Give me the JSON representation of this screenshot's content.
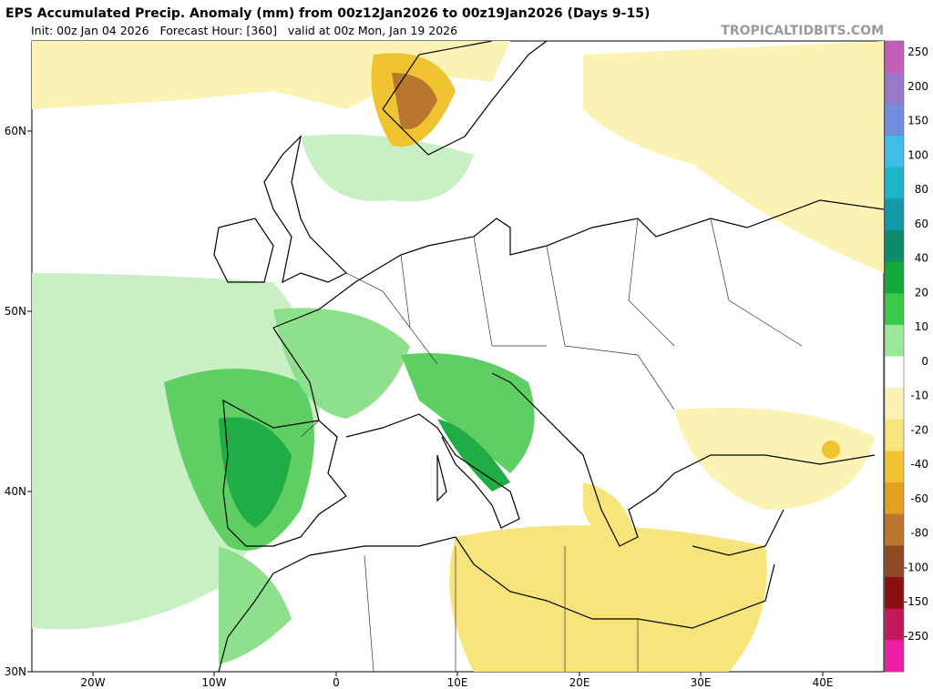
{
  "header": {
    "title": "EPS Accumulated Precip. Anomaly (mm) from 00z12Jan2026 to 00z19Jan2026 (Days 9-15)",
    "subtitle": "Init: 00z Jan 04 2026   Forecast Hour: [360]   valid at 00z Mon, Jan 19 2026",
    "source": "TROPICALTIDBITS.COM"
  },
  "map": {
    "lat_labels": [
      "60N",
      "50N",
      "40N",
      "30N"
    ],
    "lon_labels": [
      "20W",
      "10W",
      "0",
      "10E",
      "20E",
      "30E",
      "40E"
    ]
  },
  "colorbar": {
    "labels": [
      250,
      200,
      150,
      100,
      80,
      60,
      40,
      20,
      10,
      0,
      -10,
      -20,
      -40,
      -60,
      -80,
      -100,
      -150,
      -250
    ],
    "colors": [
      "#c45fb8",
      "#9a78c8",
      "#6f8fdc",
      "#3fbde6",
      "#1cb4c8",
      "#139aa6",
      "#0f8a6a",
      "#13a83a",
      "#3cc84a",
      "#9be89a",
      "#ffffff",
      "#fbf3b3",
      "#f7e47a",
      "#f0c430",
      "#e2a020",
      "#b8762e",
      "#8e4a26",
      "#8a0f12",
      "#c4185c",
      "#ee1ea4"
    ]
  }
}
